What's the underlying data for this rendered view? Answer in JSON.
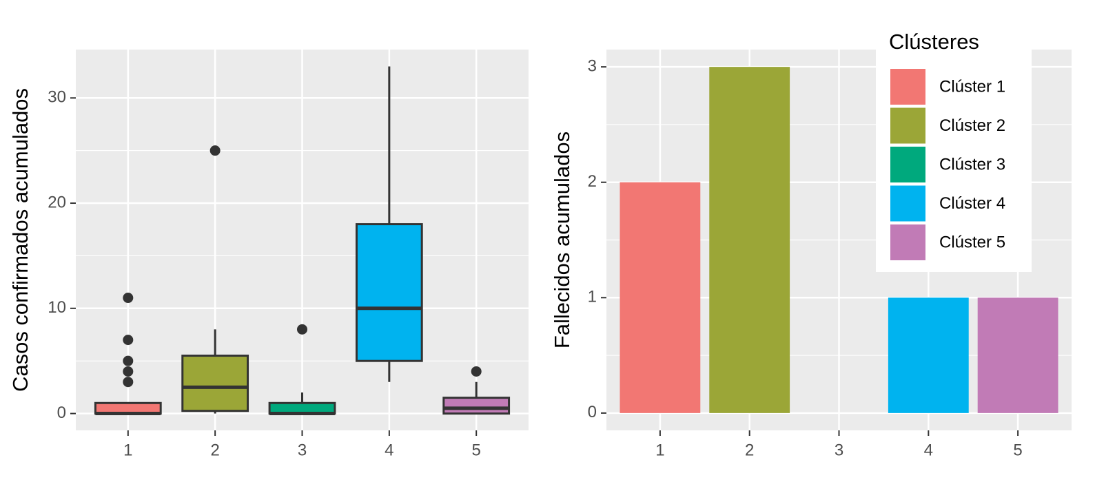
{
  "chart_data": [
    {
      "type": "box",
      "ylabel": "Casos confirmados acumulados",
      "categories": [
        "1",
        "2",
        "3",
        "4",
        "5"
      ],
      "colors": [
        "#f27773",
        "#9ba637",
        "#00a97d",
        "#00b3ef",
        "#c17bb6"
      ],
      "boxes": [
        {
          "min": 0,
          "q1": 0,
          "median": 0,
          "q3": 1,
          "max": 1,
          "outliers": [
            3,
            4,
            5,
            7,
            11
          ]
        },
        {
          "min": 0,
          "q1": 0.25,
          "median": 2.5,
          "q3": 5.5,
          "max": 8,
          "outliers": [
            25
          ]
        },
        {
          "min": 0,
          "q1": 0,
          "median": 0,
          "q3": 1,
          "max": 2,
          "outliers": [
            8
          ]
        },
        {
          "min": 3,
          "q1": 5,
          "median": 10,
          "q3": 18,
          "max": 33,
          "outliers": []
        },
        {
          "min": 0,
          "q1": 0,
          "median": 0.5,
          "q3": 1.5,
          "max": 3,
          "outliers": [
            4
          ]
        }
      ],
      "ylim": [
        -1.6,
        34.6
      ],
      "yticks": [
        0,
        10,
        20,
        30
      ],
      "grid": true
    },
    {
      "type": "bar",
      "ylabel": "Fallecidos acumulados",
      "categories": [
        "1",
        "2",
        "3",
        "4",
        "5"
      ],
      "values": [
        2,
        3,
        0,
        1,
        1
      ],
      "colors": [
        "#f27773",
        "#9ba637",
        "#00a97d",
        "#00b3ef",
        "#c17bb6"
      ],
      "legend_title": "Clústeres",
      "legend_labels": [
        "Clúster 1",
        "Clúster 2",
        "Clúster 3",
        "Clúster 4",
        "Clúster 5"
      ],
      "legend_position": "top-right",
      "ylim": [
        -0.15,
        3.15
      ],
      "yticks": [
        0,
        1,
        2,
        3
      ],
      "grid": true
    }
  ]
}
